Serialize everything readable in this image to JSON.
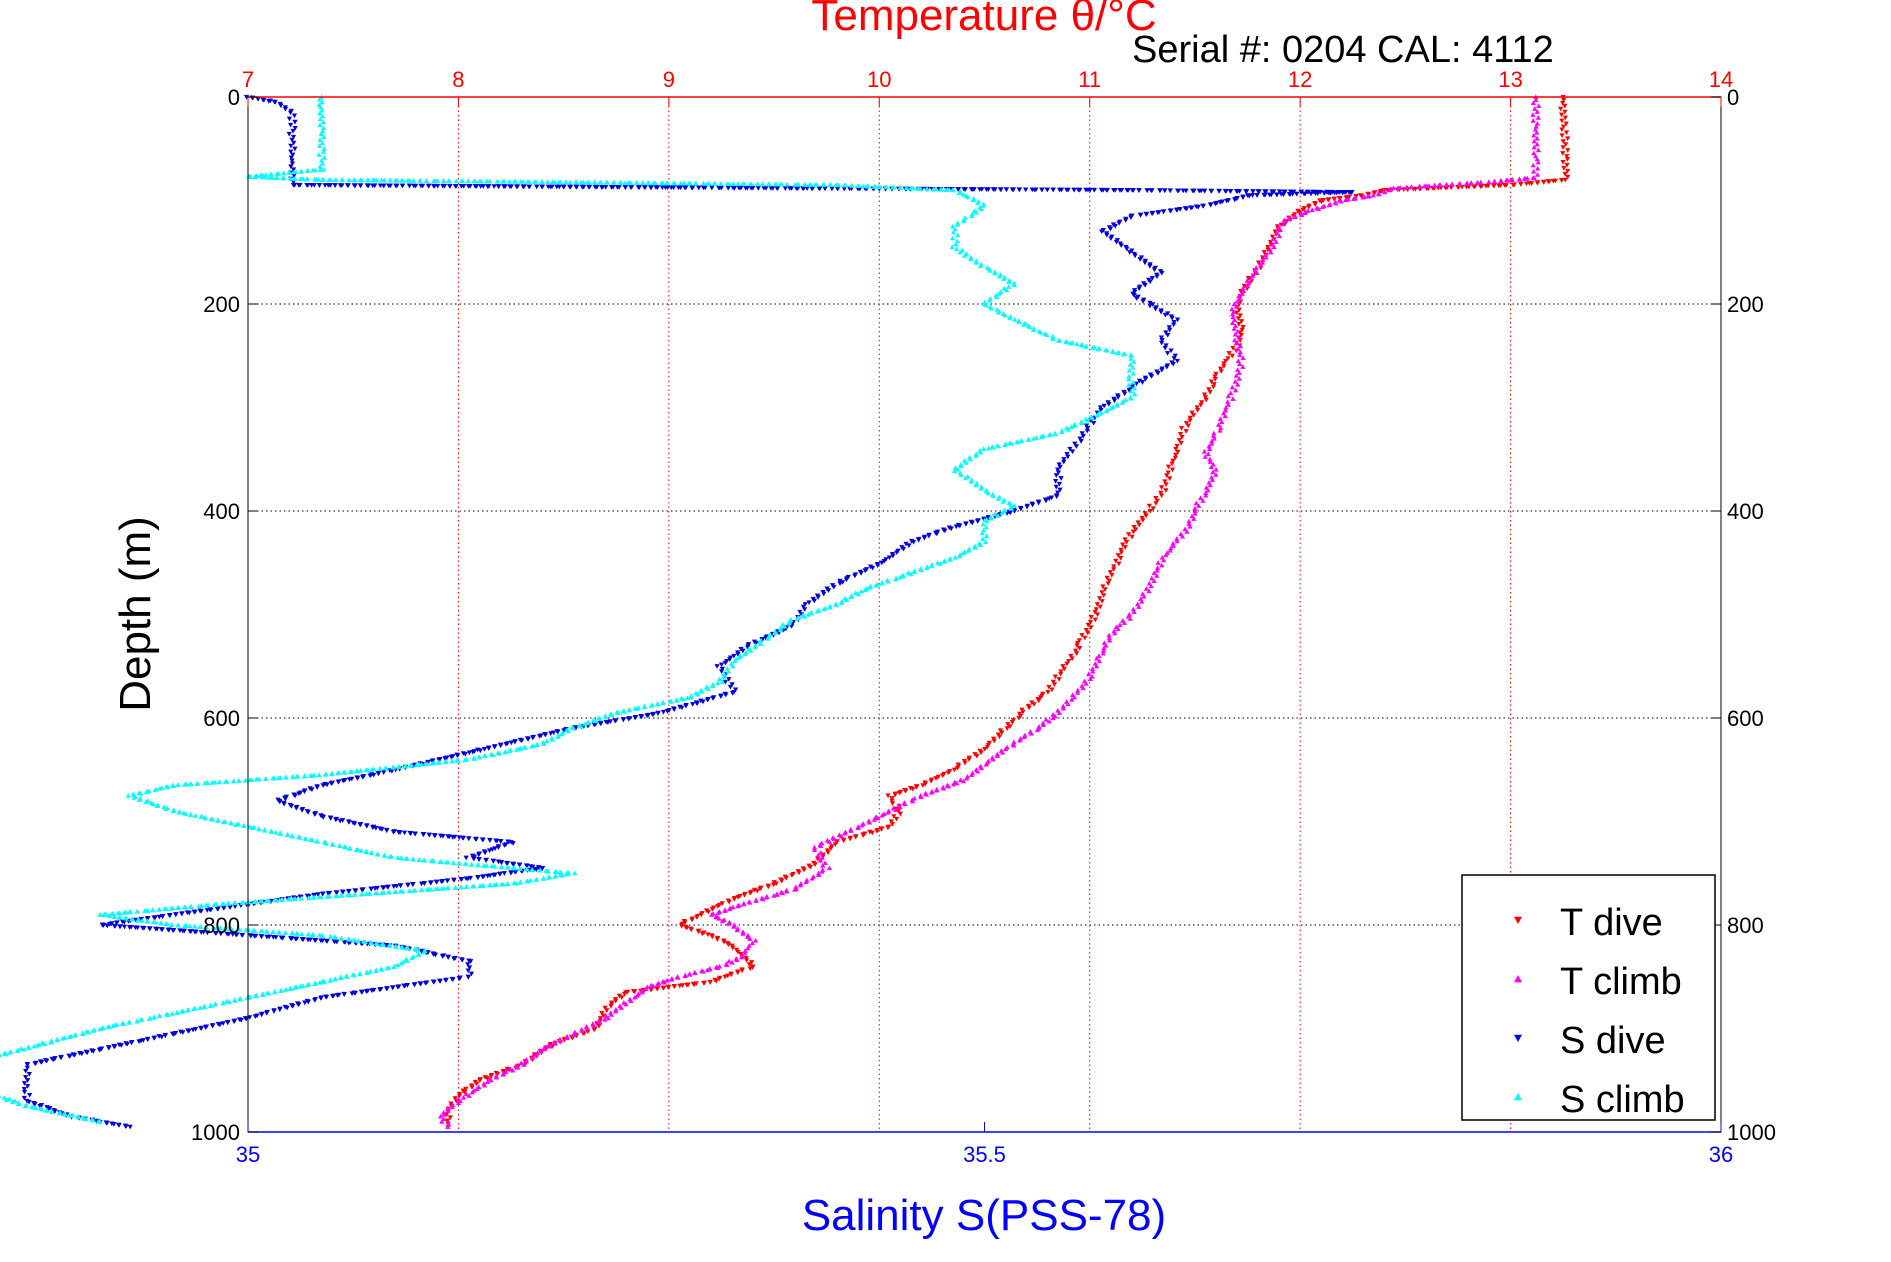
{
  "header": {
    "serial_text": "Serial #: 0204  CAL: 4112"
  },
  "chart_data": {
    "type": "scatter",
    "title": "Temperature θ/°C",
    "xlabel": "Salinity S(PSS-78)",
    "ylabel": "Depth (m)",
    "grid": true,
    "legend_position": "bottom-right",
    "y_axis": {
      "label": "Depth (m)",
      "range": [
        0,
        1000
      ],
      "reversed": true,
      "ticks": [
        0,
        200,
        400,
        600,
        800,
        1000
      ]
    },
    "x_axis_top": {
      "label": "Temperature θ/°C",
      "range": [
        7,
        14
      ],
      "ticks": [
        7,
        8,
        9,
        10,
        11,
        12,
        13,
        14
      ],
      "color": "#ff0000"
    },
    "x_axis_bottom": {
      "label": "Salinity S(PSS-78)",
      "range": [
        35,
        36
      ],
      "ticks": [
        35,
        35.5,
        36
      ],
      "color": "#0000ff"
    },
    "colors": {
      "t_dive": "#ff0000",
      "t_climb": "#ff00ff",
      "s_dive": "#0000dd",
      "s_climb": "#00ffff"
    },
    "series": [
      {
        "name": "T dive",
        "axis": "temperature",
        "marker": "down-triangle",
        "points": [
          [
            13.25,
            0
          ],
          [
            13.25,
            20
          ],
          [
            13.26,
            40
          ],
          [
            13.26,
            60
          ],
          [
            13.26,
            80
          ],
          [
            13.0,
            85
          ],
          [
            12.4,
            90
          ],
          [
            12.3,
            95
          ],
          [
            12.1,
            100
          ],
          [
            12.0,
            110
          ],
          [
            11.9,
            125
          ],
          [
            11.85,
            145
          ],
          [
            11.8,
            165
          ],
          [
            11.75,
            180
          ],
          [
            11.7,
            200
          ],
          [
            11.72,
            225
          ],
          [
            11.7,
            240
          ],
          [
            11.65,
            255
          ],
          [
            11.6,
            270
          ],
          [
            11.55,
            290
          ],
          [
            11.5,
            305
          ],
          [
            11.45,
            320
          ],
          [
            11.42,
            340
          ],
          [
            11.38,
            360
          ],
          [
            11.35,
            380
          ],
          [
            11.28,
            400
          ],
          [
            11.2,
            420
          ],
          [
            11.15,
            440
          ],
          [
            11.08,
            470
          ],
          [
            11.05,
            490
          ],
          [
            11.0,
            510
          ],
          [
            10.95,
            530
          ],
          [
            10.9,
            545
          ],
          [
            10.85,
            560
          ],
          [
            10.8,
            575
          ],
          [
            10.7,
            590
          ],
          [
            10.6,
            610
          ],
          [
            10.5,
            630
          ],
          [
            10.35,
            650
          ],
          [
            10.2,
            665
          ],
          [
            10.05,
            675
          ],
          [
            10.1,
            690
          ],
          [
            10.05,
            705
          ],
          [
            9.8,
            720
          ],
          [
            9.7,
            740
          ],
          [
            9.5,
            760
          ],
          [
            9.3,
            775
          ],
          [
            9.15,
            790
          ],
          [
            9.05,
            800
          ],
          [
            9.2,
            810
          ],
          [
            9.3,
            820
          ],
          [
            9.4,
            840
          ],
          [
            9.2,
            855
          ],
          [
            8.8,
            865
          ],
          [
            8.7,
            880
          ],
          [
            8.65,
            900
          ],
          [
            8.45,
            915
          ],
          [
            8.3,
            935
          ],
          [
            8.1,
            950
          ],
          [
            8.0,
            965
          ],
          [
            7.95,
            980
          ],
          [
            7.95,
            995
          ]
        ]
      },
      {
        "name": "T climb",
        "axis": "temperature",
        "marker": "up-triangle",
        "points": [
          [
            7.95,
            995
          ],
          [
            7.92,
            985
          ],
          [
            8.0,
            970
          ],
          [
            8.15,
            950
          ],
          [
            8.3,
            935
          ],
          [
            8.4,
            920
          ],
          [
            8.55,
            905
          ],
          [
            8.7,
            890
          ],
          [
            8.8,
            875
          ],
          [
            8.9,
            860
          ],
          [
            9.05,
            850
          ],
          [
            9.25,
            840
          ],
          [
            9.35,
            830
          ],
          [
            9.4,
            815
          ],
          [
            9.3,
            800
          ],
          [
            9.2,
            790
          ],
          [
            9.35,
            780
          ],
          [
            9.6,
            765
          ],
          [
            9.75,
            745
          ],
          [
            9.7,
            725
          ],
          [
            9.9,
            705
          ],
          [
            10.05,
            690
          ],
          [
            10.2,
            675
          ],
          [
            10.4,
            660
          ],
          [
            10.5,
            645
          ],
          [
            10.6,
            630
          ],
          [
            10.75,
            610
          ],
          [
            10.85,
            595
          ],
          [
            10.92,
            580
          ],
          [
            11.0,
            560
          ],
          [
            11.05,
            540
          ],
          [
            11.1,
            520
          ],
          [
            11.2,
            500
          ],
          [
            11.25,
            485
          ],
          [
            11.3,
            465
          ],
          [
            11.35,
            445
          ],
          [
            11.45,
            420
          ],
          [
            11.5,
            400
          ],
          [
            11.55,
            380
          ],
          [
            11.6,
            360
          ],
          [
            11.55,
            345
          ],
          [
            11.6,
            325
          ],
          [
            11.65,
            300
          ],
          [
            11.7,
            275
          ],
          [
            11.72,
            255
          ],
          [
            11.7,
            235
          ],
          [
            11.68,
            210
          ],
          [
            11.7,
            195
          ],
          [
            11.75,
            180
          ],
          [
            11.82,
            160
          ],
          [
            11.88,
            140
          ],
          [
            11.92,
            120
          ],
          [
            12.05,
            110
          ],
          [
            12.2,
            100
          ],
          [
            12.35,
            95
          ],
          [
            12.45,
            88
          ],
          [
            12.9,
            82
          ],
          [
            13.12,
            78
          ],
          [
            13.12,
            60
          ],
          [
            13.12,
            40
          ],
          [
            13.12,
            20
          ],
          [
            13.12,
            0
          ]
        ]
      },
      {
        "name": "S dive",
        "axis": "salinity",
        "marker": "down-triangle",
        "points": [
          [
            35.0,
            0
          ],
          [
            35.02,
            5
          ],
          [
            35.03,
            15
          ],
          [
            35.03,
            30
          ],
          [
            35.03,
            50
          ],
          [
            35.03,
            70
          ],
          [
            35.03,
            85
          ],
          [
            35.35,
            88
          ],
          [
            35.6,
            90
          ],
          [
            35.75,
            92
          ],
          [
            35.68,
            95
          ],
          [
            35.65,
            105
          ],
          [
            35.6,
            115
          ],
          [
            35.58,
            130
          ],
          [
            35.6,
            150
          ],
          [
            35.62,
            170
          ],
          [
            35.6,
            190
          ],
          [
            35.63,
            215
          ],
          [
            35.62,
            235
          ],
          [
            35.63,
            255
          ],
          [
            35.6,
            280
          ],
          [
            35.58,
            300
          ],
          [
            35.57,
            320
          ],
          [
            35.56,
            340
          ],
          [
            35.55,
            360
          ],
          [
            35.55,
            385
          ],
          [
            35.52,
            400
          ],
          [
            35.48,
            415
          ],
          [
            35.45,
            430
          ],
          [
            35.43,
            450
          ],
          [
            35.4,
            470
          ],
          [
            35.38,
            490
          ],
          [
            35.37,
            510
          ],
          [
            35.34,
            530
          ],
          [
            35.32,
            550
          ],
          [
            35.33,
            575
          ],
          [
            35.28,
            595
          ],
          [
            35.22,
            610
          ],
          [
            35.16,
            630
          ],
          [
            35.1,
            650
          ],
          [
            35.05,
            665
          ],
          [
            35.02,
            680
          ],
          [
            35.05,
            695
          ],
          [
            35.1,
            710
          ],
          [
            35.18,
            720
          ],
          [
            35.15,
            735
          ],
          [
            35.2,
            745
          ],
          [
            35.15,
            755
          ],
          [
            35.05,
            770
          ],
          [
            34.95,
            790
          ],
          [
            34.9,
            800
          ],
          [
            35.0,
            810
          ],
          [
            35.1,
            820
          ],
          [
            35.15,
            835
          ],
          [
            35.15,
            850
          ],
          [
            35.05,
            870
          ],
          [
            35.0,
            890
          ],
          [
            34.95,
            905
          ],
          [
            34.9,
            920
          ],
          [
            34.85,
            935
          ],
          [
            34.85,
            950
          ],
          [
            34.85,
            970
          ],
          [
            34.88,
            985
          ],
          [
            34.92,
            995
          ]
        ]
      },
      {
        "name": "S climb",
        "axis": "salinity",
        "marker": "up-triangle",
        "points": [
          [
            34.9,
            990
          ],
          [
            34.85,
            975
          ],
          [
            34.82,
            960
          ],
          [
            34.8,
            945
          ],
          [
            34.82,
            930
          ],
          [
            34.86,
            915
          ],
          [
            34.9,
            900
          ],
          [
            34.95,
            885
          ],
          [
            35.0,
            870
          ],
          [
            35.05,
            855
          ],
          [
            35.1,
            840
          ],
          [
            35.12,
            825
          ],
          [
            35.05,
            810
          ],
          [
            34.95,
            800
          ],
          [
            34.9,
            790
          ],
          [
            34.98,
            780
          ],
          [
            35.08,
            770
          ],
          [
            35.18,
            760
          ],
          [
            35.22,
            750
          ],
          [
            35.1,
            735
          ],
          [
            35.05,
            720
          ],
          [
            35.0,
            705
          ],
          [
            34.95,
            690
          ],
          [
            34.92,
            675
          ],
          [
            34.95,
            665
          ],
          [
            35.05,
            655
          ],
          [
            35.15,
            640
          ],
          [
            35.2,
            625
          ],
          [
            35.22,
            610
          ],
          [
            35.25,
            595
          ],
          [
            35.3,
            580
          ],
          [
            35.32,
            565
          ],
          [
            35.33,
            545
          ],
          [
            35.35,
            525
          ],
          [
            35.37,
            505
          ],
          [
            35.4,
            490
          ],
          [
            35.42,
            475
          ],
          [
            35.45,
            460
          ],
          [
            35.48,
            445
          ],
          [
            35.5,
            430
          ],
          [
            35.5,
            410
          ],
          [
            35.52,
            395
          ],
          [
            35.5,
            380
          ],
          [
            35.48,
            360
          ],
          [
            35.5,
            340
          ],
          [
            35.55,
            325
          ],
          [
            35.58,
            305
          ],
          [
            35.6,
            290
          ],
          [
            35.6,
            270
          ],
          [
            35.6,
            250
          ],
          [
            35.55,
            235
          ],
          [
            35.52,
            215
          ],
          [
            35.5,
            200
          ],
          [
            35.52,
            180
          ],
          [
            35.5,
            165
          ],
          [
            35.48,
            145
          ],
          [
            35.48,
            125
          ],
          [
            35.5,
            105
          ],
          [
            35.48,
            90
          ],
          [
            35.4,
            85
          ],
          [
            35.2,
            82
          ],
          [
            35.05,
            80
          ],
          [
            35.0,
            77
          ],
          [
            35.05,
            70
          ],
          [
            35.05,
            50
          ],
          [
            35.05,
            30
          ],
          [
            35.05,
            10
          ],
          [
            35.05,
            0
          ]
        ]
      }
    ]
  }
}
